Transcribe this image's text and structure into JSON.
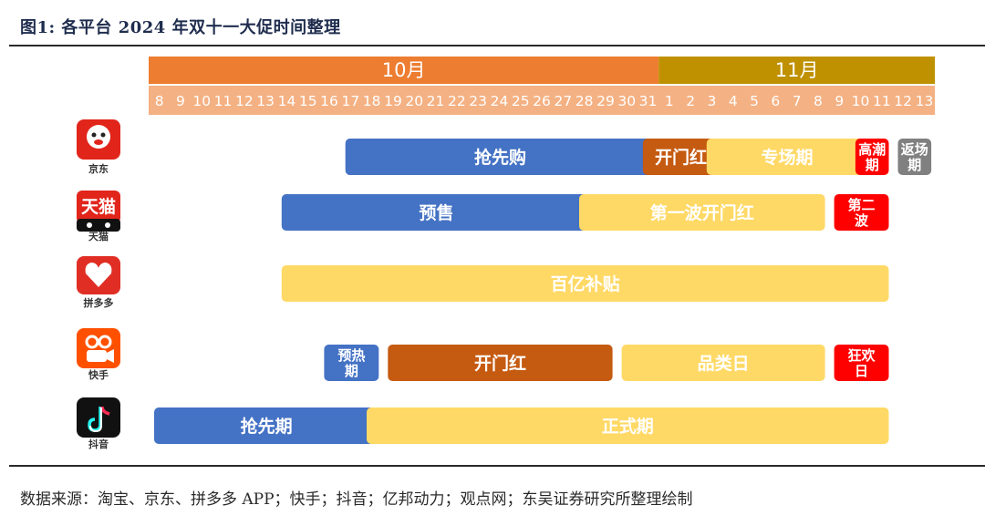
{
  "figure": {
    "title": "图1: 各平台 2024 年双十一大促时间整理",
    "source": "数据来源：淘宝、京东、拼多多 APP；快手；抖音；亿邦动力；观点网；东吴证券研究所整理绘制"
  },
  "colors": {
    "blue": "#4472c4",
    "yellow": "#ffd966",
    "brown": "#c55a11",
    "red": "#ff0000",
    "gray": "#808080",
    "oct_header": "#ed7d31",
    "nov_header": "#bf9000",
    "day_row": "#f4b183"
  },
  "chart_data": {
    "type": "gantt",
    "title": "图1: 各平台 2024 年双十一大促时间整理",
    "timeline": {
      "months": [
        {
          "label": "10月",
          "start_day": "10-08",
          "end_day": "10-31",
          "color": "#ed7d31"
        },
        {
          "label": "11月",
          "start_day": "11-01",
          "end_day": "11-13",
          "color": "#bf9000"
        }
      ],
      "days": [
        "8",
        "9",
        "10",
        "11",
        "12",
        "13",
        "14",
        "15",
        "16",
        "17",
        "18",
        "19",
        "20",
        "21",
        "22",
        "23",
        "24",
        "25",
        "26",
        "27",
        "28",
        "29",
        "30",
        "31",
        "1",
        "2",
        "3",
        "4",
        "5",
        "6",
        "7",
        "8",
        "9",
        "10",
        "11",
        "12",
        "13"
      ]
    },
    "platforms": [
      {
        "name": "京东",
        "logo": "jd-logo",
        "phases": [
          {
            "label": "抢先购",
            "start": "10-17",
            "end": "10-31",
            "color": "blue"
          },
          {
            "label": "开门红",
            "start": "10-31",
            "end": "11-03",
            "color": "brown"
          },
          {
            "label": "专场期",
            "start": "11-03",
            "end": "11-10",
            "color": "yellow"
          },
          {
            "label": "高潮期",
            "start": "11-10",
            "end": "11-11",
            "color": "red"
          },
          {
            "label": "返场期",
            "start": "11-12",
            "end": "11-13",
            "color": "gray"
          }
        ]
      },
      {
        "name": "天猫",
        "logo": "tmall-logo",
        "phases": [
          {
            "label": "预售",
            "start": "10-14",
            "end": "10-28",
            "color": "blue"
          },
          {
            "label": "第一波开门红",
            "start": "10-28",
            "end": "11-08",
            "color": "yellow"
          },
          {
            "label": "第二波",
            "start": "11-09",
            "end": "11-11",
            "color": "red"
          }
        ]
      },
      {
        "name": "拼多多",
        "logo": "pdd-logo",
        "phases": [
          {
            "label": "百亿补贴",
            "start": "10-14",
            "end": "11-11",
            "color": "yellow"
          }
        ]
      },
      {
        "name": "快手",
        "logo": "kuaishou-logo",
        "phases": [
          {
            "label": "预热期",
            "start": "10-16",
            "end": "10-18",
            "color": "blue"
          },
          {
            "label": "开门红",
            "start": "10-19",
            "end": "10-29",
            "color": "brown"
          },
          {
            "label": "品类日",
            "start": "10-30",
            "end": "11-08",
            "color": "yellow"
          },
          {
            "label": "狂欢日",
            "start": "11-09",
            "end": "11-11",
            "color": "red"
          }
        ]
      },
      {
        "name": "抖音",
        "logo": "douyin-logo",
        "phases": [
          {
            "label": "抢先期",
            "start": "10-08",
            "end": "10-18",
            "color": "blue"
          },
          {
            "label": "正式期",
            "start": "10-18",
            "end": "11-11",
            "color": "yellow"
          }
        ]
      }
    ]
  }
}
